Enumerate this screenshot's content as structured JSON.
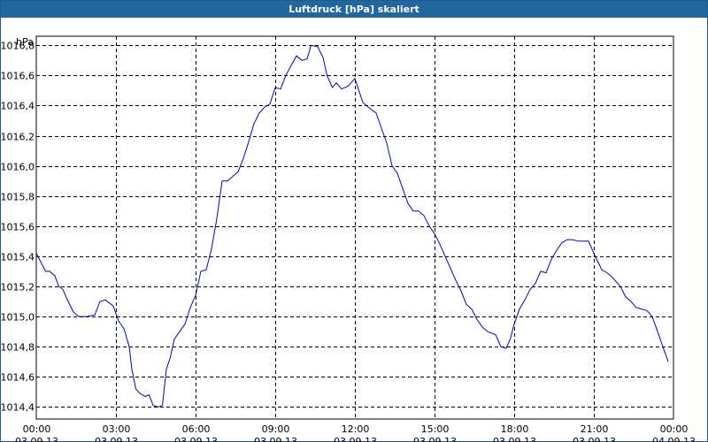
{
  "window": {
    "title": "Luftdruck [hPa] skaliert"
  },
  "colors": {
    "titlebar": "#2266a0",
    "line": "#0000cc",
    "grid": "#000000"
  },
  "chart_data": {
    "type": "line",
    "title": "Luftdruck [hPa] skaliert",
    "ylabel": "hPa",
    "xlabel": "",
    "ylim": [
      1014.32,
      1016.86
    ],
    "y_ticks": [
      1014.4,
      1014.6,
      1014.8,
      1015.0,
      1015.2,
      1015.4,
      1015.6,
      1015.8,
      1016.0,
      1016.2,
      1016.4,
      1016.6,
      1016.8
    ],
    "y_tick_labels": [
      "1014,4",
      "1014,6",
      "1014,8",
      "1015,0",
      "1015,2",
      "1015,4",
      "1015,6",
      "1015,8",
      "1016,0",
      "1016,2",
      "1016,4",
      "1016,6",
      "1016,8"
    ],
    "xlim": [
      0,
      24
    ],
    "x_ticks": [
      0,
      3,
      6,
      9,
      12,
      15,
      18,
      21,
      24
    ],
    "x_tick_labels": [
      [
        "00:00",
        "03.09.13"
      ],
      [
        "03:00",
        "03.09.13"
      ],
      [
        "06:00",
        "03.09.13"
      ],
      [
        "09:00",
        "03.09.13"
      ],
      [
        "12:00",
        "03.09.13"
      ],
      [
        "15:00",
        "03.09.13"
      ],
      [
        "18:00",
        "03.09.13"
      ],
      [
        "21:00",
        "03.09.13"
      ],
      [
        "00:00",
        "04.09.13"
      ]
    ],
    "grid": true,
    "series": [
      {
        "x": [
          0,
          0.35,
          0.5,
          0.7,
          0.85,
          1.0,
          1.2,
          1.4,
          1.6,
          1.9,
          2.2,
          2.4,
          2.6,
          2.9,
          3.1,
          3.3,
          3.5,
          3.6,
          3.75,
          3.9,
          4.1,
          4.25,
          4.4,
          4.6,
          4.75,
          4.9,
          5.05,
          5.2,
          5.4,
          5.6,
          5.8,
          6.0,
          6.2,
          6.4,
          6.6,
          6.8,
          7.0,
          7.2,
          7.4,
          7.6,
          7.8,
          8.0,
          8.2,
          8.4,
          8.6,
          8.8,
          9.0,
          9.2,
          9.4,
          9.55,
          9.8,
          10.0,
          10.2,
          10.35,
          10.6,
          10.8,
          10.95,
          11.15,
          11.3,
          11.5,
          11.75,
          12.0,
          12.3,
          12.5,
          12.8,
          13.0,
          13.2,
          13.4,
          13.6,
          13.8,
          14.0,
          14.2,
          14.4,
          14.6,
          14.8,
          15.0,
          15.2,
          15.4,
          15.6,
          15.8,
          16.0,
          16.2,
          16.4,
          16.6,
          16.8,
          17.0,
          17.3,
          17.5,
          17.7,
          17.85,
          18.0,
          18.2,
          18.4,
          18.6,
          18.8,
          19.0,
          19.2,
          19.4,
          19.6,
          19.8,
          20.0,
          20.2,
          20.4,
          20.6,
          20.8,
          21.05,
          21.3,
          21.5,
          21.7,
          22.0,
          22.2,
          22.4,
          22.6,
          22.8,
          23.0,
          23.2,
          23.4,
          23.6,
          23.8
        ],
        "y": [
          1015.42,
          1015.3,
          1015.3,
          1015.27,
          1015.2,
          1015.18,
          1015.1,
          1015.03,
          1015.0,
          1015.0,
          1015.01,
          1015.1,
          1015.11,
          1015.07,
          1014.97,
          1014.92,
          1014.8,
          1014.65,
          1014.52,
          1014.49,
          1014.47,
          1014.48,
          1014.41,
          1014.4,
          1014.41,
          1014.65,
          1014.73,
          1014.85,
          1014.9,
          1014.95,
          1015.06,
          1015.14,
          1015.3,
          1015.31,
          1015.45,
          1015.65,
          1015.9,
          1015.9,
          1015.93,
          1015.96,
          1016.05,
          1016.16,
          1016.28,
          1016.35,
          1016.39,
          1016.41,
          1016.52,
          1016.51,
          1016.6,
          1016.65,
          1016.73,
          1016.7,
          1016.71,
          1016.8,
          1016.79,
          1016.72,
          1016.6,
          1016.52,
          1016.55,
          1016.51,
          1016.53,
          1016.58,
          1016.42,
          1016.39,
          1016.35,
          1016.25,
          1016.15,
          1016.0,
          1015.95,
          1015.85,
          1015.75,
          1015.7,
          1015.7,
          1015.67,
          1015.6,
          1015.55,
          1015.48,
          1015.4,
          1015.32,
          1015.24,
          1015.17,
          1015.08,
          1015.05,
          1014.98,
          1014.93,
          1014.9,
          1014.88,
          1014.8,
          1014.79,
          1014.85,
          1014.95,
          1015.05,
          1015.11,
          1015.18,
          1015.22,
          1015.3,
          1015.29,
          1015.38,
          1015.44,
          1015.49,
          1015.51,
          1015.51,
          1015.5,
          1015.5,
          1015.5,
          1015.4,
          1015.31,
          1015.29,
          1015.26,
          1015.2,
          1015.13,
          1015.1,
          1015.06,
          1015.05,
          1015.04,
          1015.0,
          1014.9,
          1014.8,
          1014.7
        ]
      }
    ]
  }
}
